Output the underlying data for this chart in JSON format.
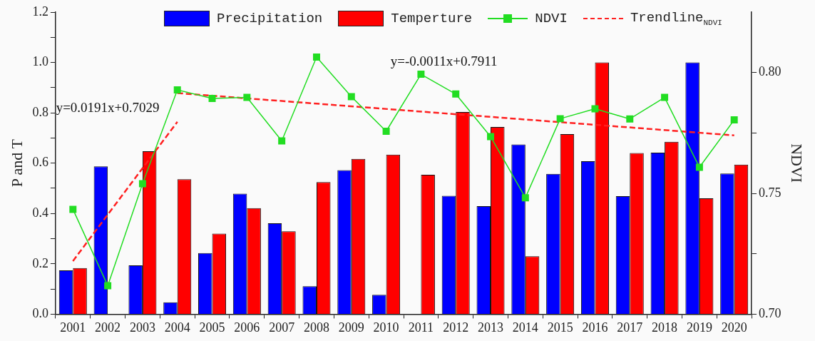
{
  "chart_data": {
    "type": "bar",
    "categories": [
      "2001",
      "2002",
      "2003",
      "2004",
      "2005",
      "2006",
      "2007",
      "2008",
      "2009",
      "2010",
      "2011",
      "2012",
      "2013",
      "2014",
      "2015",
      "2016",
      "2017",
      "2018",
      "2019",
      "2020"
    ],
    "ylabel": "P and T",
    "y2label": "NDVI",
    "ylim": [
      0,
      1.2
    ],
    "yticks": [
      {
        "value": 0,
        "label": "0.0"
      },
      {
        "value": 0.1,
        "label": null
      },
      0.2,
      {
        "value": 0.3,
        "label": null
      },
      0.4,
      {
        "value": 0.5,
        "label": null
      },
      0.6,
      {
        "value": 0.7,
        "label": null
      },
      0.8,
      {
        "value": 0.9,
        "label": null
      },
      {
        "value": 1,
        "label": "1.0"
      },
      {
        "value": 1.1,
        "label": null
      },
      1.2
    ],
    "y2lim": [
      0.7,
      0.825
    ],
    "y2ticks": [
      {
        "value": 0.7,
        "label": "0.70"
      },
      {
        "value": 0.725,
        "label": null
      },
      0.75,
      {
        "value": 0.775,
        "label": null
      },
      {
        "value": 0.8,
        "label": "0.80"
      }
    ],
    "legend": "top",
    "series": [
      {
        "name": "Precipitation",
        "color": "#0000ff",
        "values": [
          0.174,
          0.587,
          0.194,
          0.047,
          0.243,
          0.479,
          0.361,
          0.111,
          0.572,
          0.077,
          0,
          0.47,
          0.429,
          0.674,
          0.557,
          0.608,
          0.469,
          0.642,
          1.0,
          0.559
        ]
      },
      {
        "name": "Temperture",
        "color": "#ff0000",
        "values": [
          0.183,
          0,
          0.647,
          0.536,
          0.32,
          0.421,
          0.329,
          0.525,
          0.617,
          0.634,
          0.554,
          0.803,
          0.744,
          0.23,
          0.715,
          1.0,
          0.64,
          0.685,
          0.46,
          0.594
        ]
      },
      {
        "name": "NDVI",
        "type": "line",
        "axis": "y2",
        "color": "#22dd22",
        "marker": "square",
        "line_style": "solid",
        "values": [
          0.7434,
          0.7118,
          0.754,
          0.7928,
          0.7893,
          0.7897,
          0.7717,
          0.8064,
          0.79,
          0.7757,
          0.7993,
          0.7911,
          0.7735,
          0.7482,
          0.7809,
          0.785,
          0.7808,
          0.7897,
          0.7608,
          0.7804
        ]
      },
      {
        "name": "Trendline$_{NDVI}$",
        "type": "line",
        "axis": "y2",
        "color": "#ff2020",
        "marker": "none",
        "line_style": "dashed",
        "values": [
          null,
          null,
          null,
          0.7915,
          null,
          null,
          null,
          null,
          null,
          null,
          null,
          null,
          null,
          null,
          null,
          null,
          null,
          null,
          null,
          0.774
        ]
      },
      {
        "type": "line",
        "axis": "y2",
        "color": "#ff2020",
        "marker": "none",
        "line_style": "dashed",
        "values": [
          0.722,
          null,
          null,
          0.7796,
          null,
          null,
          null,
          null,
          null,
          null,
          null,
          null,
          null,
          null,
          null,
          null,
          null,
          null,
          null,
          null
        ]
      }
    ],
    "annotations": [
      "y=0.0191x+0.7029",
      "y=-0.0011x+0.7911"
    ]
  }
}
